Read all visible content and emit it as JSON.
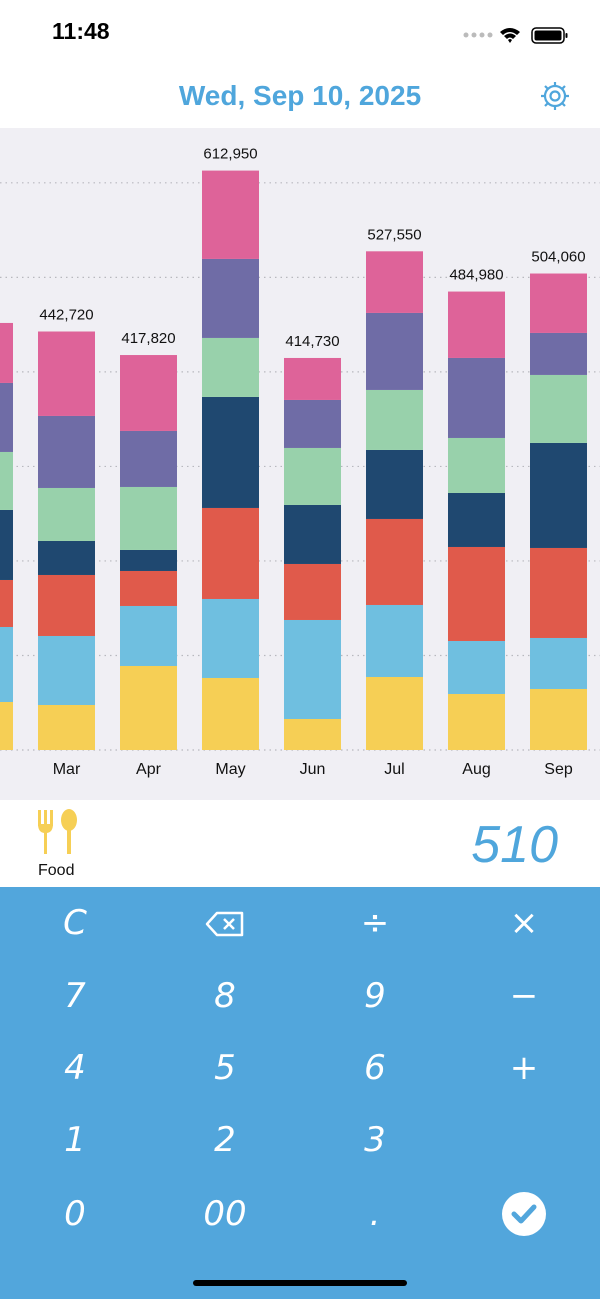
{
  "status_bar": {
    "time": "11:48"
  },
  "header": {
    "title": "Wed, Sep 10, 2025"
  },
  "chart_data": {
    "type": "stacked-bar",
    "categories": [
      null,
      "Mar",
      "Apr",
      "May",
      "Jun",
      "Jul",
      "Aug",
      "Sep"
    ],
    "series": [
      {
        "color": "#f6cf55",
        "values": [
          50780,
          47610,
          88870,
          76180,
          32800,
          77230,
          59250,
          64540
        ]
      },
      {
        "color": "#6fbfe0",
        "values": [
          79350,
          73000,
          63480,
          83580,
          104740,
          76180,
          56070,
          53960
        ]
      },
      {
        "color": "#e05a4b",
        "values": [
          49730,
          64540,
          37030,
          96280,
          59250,
          90990,
          99450,
          95220
        ]
      },
      {
        "color": "#1f4870",
        "values": [
          74060,
          35970,
          22220,
          117440,
          62420,
          73000,
          57130,
          111090
        ]
      },
      {
        "color": "#98d1ab",
        "values": [
          61360,
          56070,
          66650,
          62420,
          60310,
          63480,
          58190,
          71940
        ]
      },
      {
        "color": "#6f6ca6",
        "values": [
          73000,
          76180,
          59250,
          83580,
          50780,
          81470,
          84640,
          44440
        ]
      },
      {
        "color": "#de6399",
        "values": [
          63480,
          89350,
          80320,
          93470,
          44430,
          65200,
          70250,
          62870
        ]
      }
    ],
    "totals": [
      null,
      442720,
      417820,
      612950,
      414730,
      527550,
      484980,
      504060
    ],
    "total_labels": [
      null,
      "442,720",
      "417,820",
      "612,950",
      "414,730",
      "527,550",
      "484,980",
      "504,060"
    ],
    "ylim": [
      0,
      658000
    ],
    "yticks": [
      0,
      100000,
      200000,
      300000,
      400000,
      500000,
      600000
    ],
    "grid": true
  },
  "entry": {
    "category": "Food",
    "amount": "510"
  },
  "keypad": {
    "keys": [
      "C",
      "÷",
      "×",
      "7",
      "8",
      "9",
      "−",
      "4",
      "5",
      "6",
      "+",
      "1",
      "2",
      "3",
      "0",
      "00",
      "."
    ]
  }
}
